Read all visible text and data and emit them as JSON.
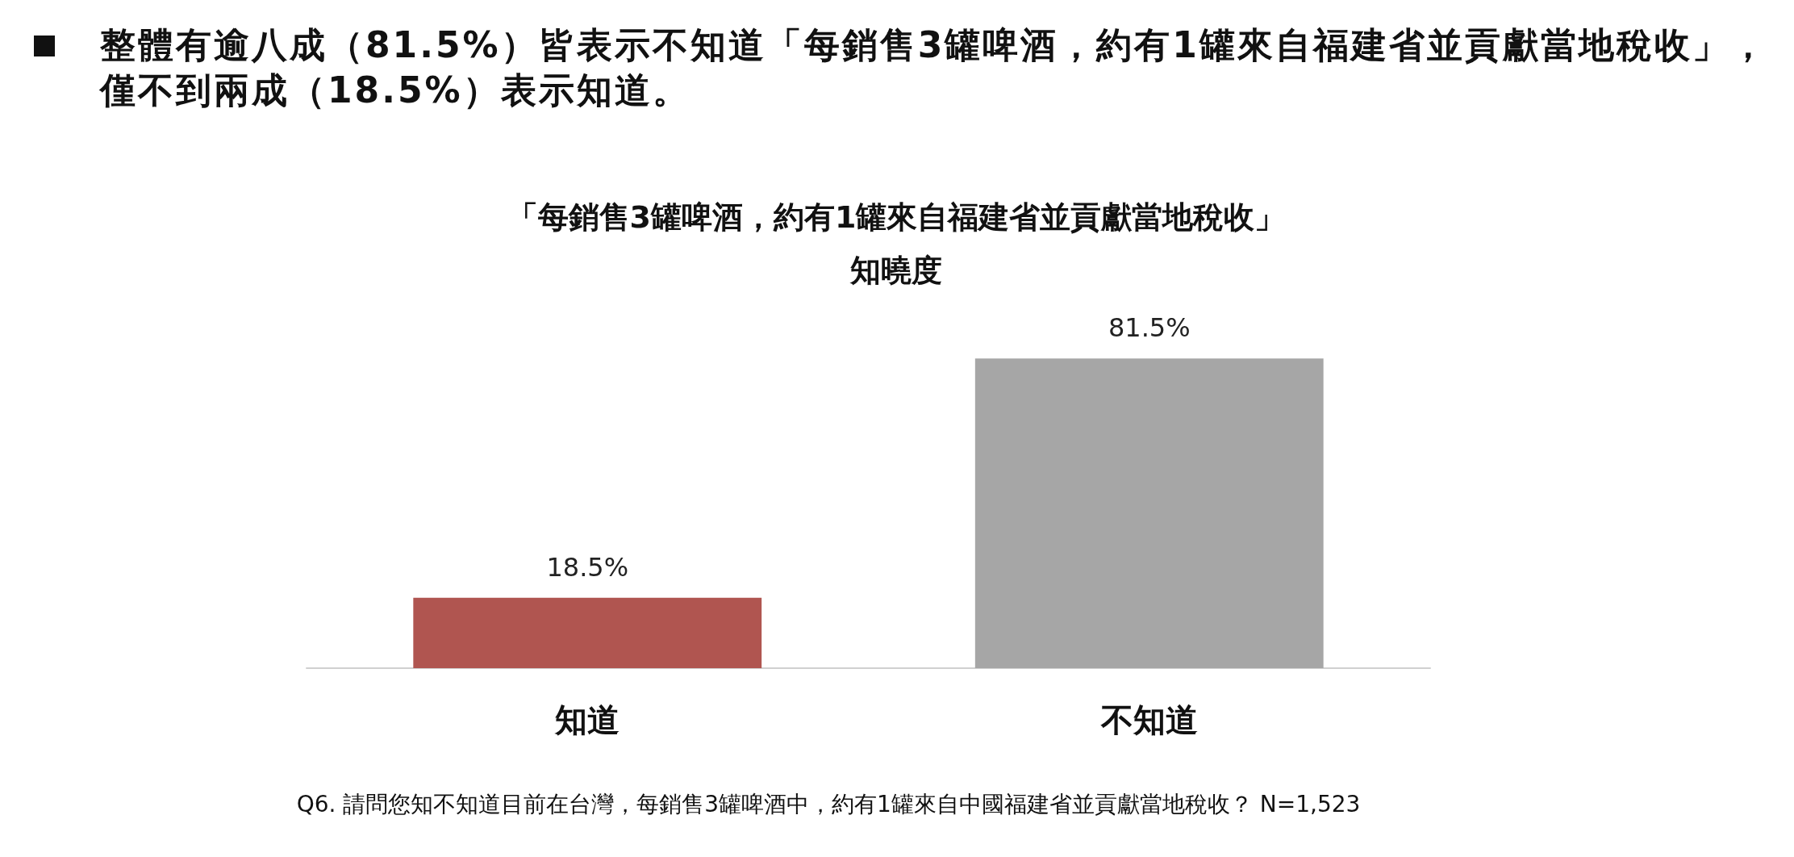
{
  "chart_data": {
    "type": "bar",
    "title": "「每銷售3罐啤酒，約有1罐來自福建省並貢獻當地稅收」",
    "subtitle": "知曉度",
    "categories": [
      "知道",
      "不知道"
    ],
    "values": [
      18.5,
      81.5
    ],
    "value_labels": [
      "18.5%",
      "81.5%"
    ],
    "colors": [
      "#b05550",
      "#a6a6a6"
    ],
    "annotations": [
      "整體有逾八成（81.5%）皆表示不知道「每銷售3罐啤酒，約有1罐來自福建省並貢獻當地稅收」，僅不到兩成（18.5%）表示知道。",
      "Q6. 請問您知不知道目前在台灣，每銷售3罐啤酒中，約有1罐來自中國福建省並貢獻當地稅收？ N=1,523"
    ]
  }
}
